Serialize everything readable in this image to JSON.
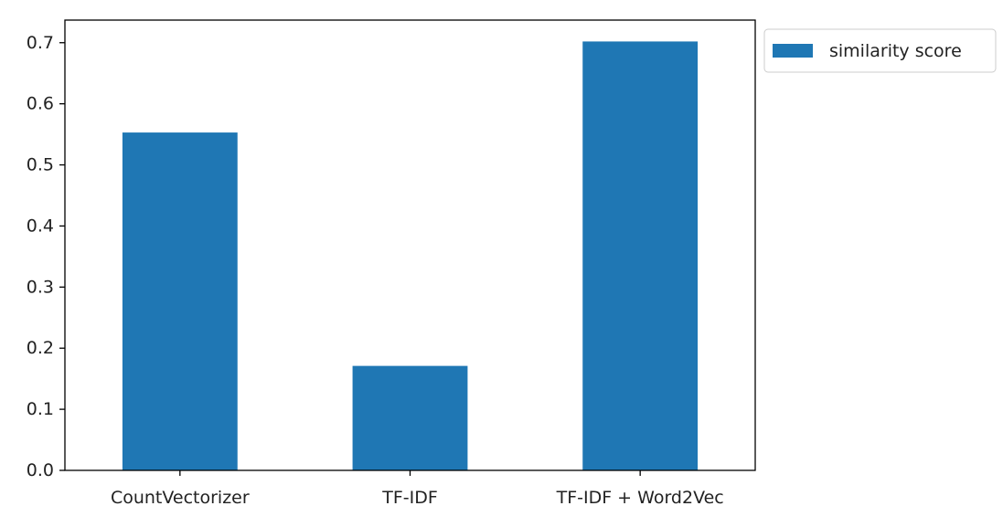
{
  "chart_data": {
    "type": "bar",
    "title": "",
    "xlabel": "",
    "ylabel": "",
    "categories": [
      "CountVectorizer",
      "TF-IDF",
      "TF-IDF + Word2Vec"
    ],
    "series": [
      {
        "name": "similarity score",
        "values": [
          0.553,
          0.171,
          0.702
        ],
        "color": "#1f77b4"
      }
    ],
    "ylim": [
      0,
      0.737
    ],
    "yticks": [
      0.0,
      0.1,
      0.2,
      0.3,
      0.4,
      0.5,
      0.6,
      0.7
    ],
    "ytick_labels": [
      "0.0",
      "0.1",
      "0.2",
      "0.3",
      "0.4",
      "0.5",
      "0.6",
      "0.7"
    ],
    "grid": false,
    "legend": {
      "placement": "outside-top-right",
      "entries": [
        "similarity score"
      ]
    }
  }
}
